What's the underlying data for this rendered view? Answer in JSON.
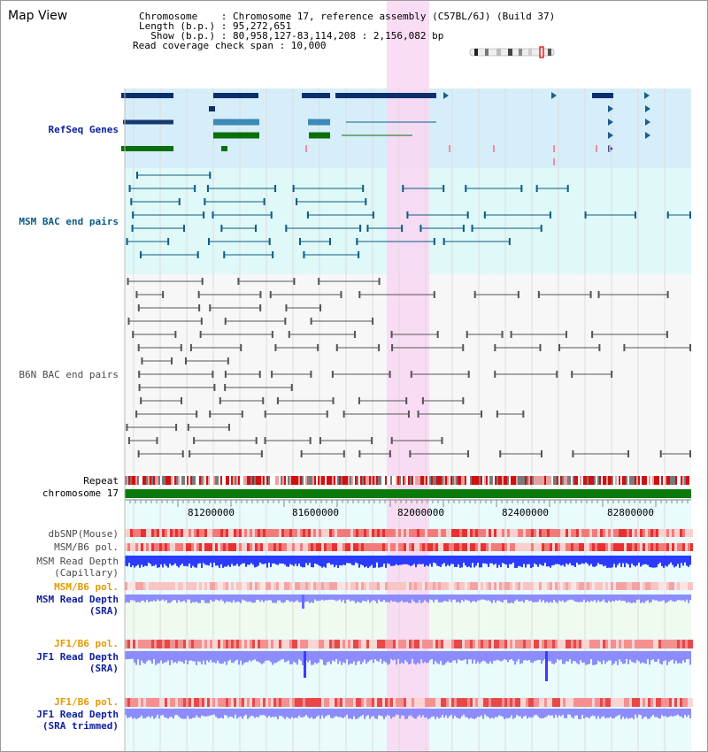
{
  "view_title": "Map View",
  "info": {
    "chromosome_line": "Chromosome    : Chromosome 17, reference assembly (C57BL/6J) (Build 37)",
    "length_line": "Length (b.p.) : 95,272,651",
    "show_line": "  Show (b.p.) : 80,958,127-83,114,208 : 2,156,082 bp",
    "coverage_line": "Read coverage check span : 10,000"
  },
  "tracks": {
    "refseq": "RefSeq Genes",
    "msm_bac": "MSM BAC end pairs",
    "b6n_bac": "B6N BAC end pairs",
    "repeat": "Repeat",
    "chromosome": "chromosome 17",
    "dbsnp": "dbSNP(Mouse)",
    "msm_b6_pol_1": "MSM/B6 pol.",
    "msm_read_depth_cap_1": "MSM Read Depth",
    "msm_read_depth_cap_2": "(Capillary)",
    "msm_b6_pol_2": "MSM/B6 pol.",
    "msm_read_depth_sra_1": "MSM Read Depth",
    "msm_read_depth_sra_2": "(SRA)",
    "jf1_b6_pol_1": "JF1/B6 pol.",
    "jf1_read_depth_sra_1": "JF1 Read Depth",
    "jf1_read_depth_sra_2": "(SRA)",
    "jf1_b6_pol_2": "JF1/B6 pol.",
    "jf1_read_depth_trim_1": "JF1 Read Depth",
    "jf1_read_depth_trim_2": "(SRA trimmed)"
  },
  "axis": {
    "ticks": [
      "81200000",
      "81600000",
      "82000000",
      "82400000",
      "82800000"
    ]
  },
  "colors": {
    "highlight": "#f9d6f2",
    "refseq_bg": "#d6eef9",
    "msm_bg": "#dff8f8",
    "chromosome": "#0a7a0a",
    "depth_blue": "#2b3cff",
    "depth_light": "#8c8cff"
  }
}
